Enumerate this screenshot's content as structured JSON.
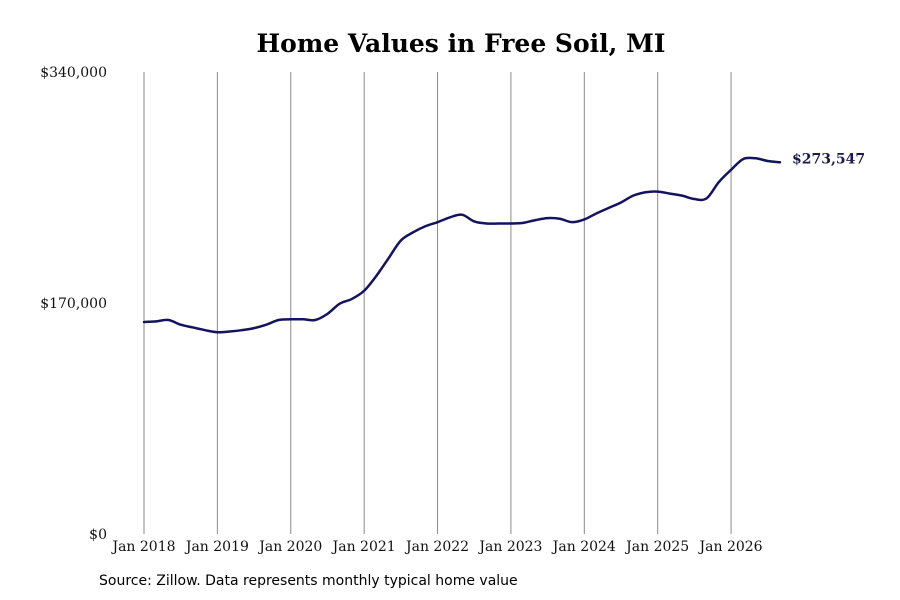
{
  "chart_data": {
    "type": "line",
    "title": "Home Values in Free Soil, MI",
    "xlabel": "",
    "ylabel": "",
    "ylim": [
      0,
      340000
    ],
    "xlim": [
      "2018-01",
      "2026-09"
    ],
    "grid": "vertical",
    "y_ticks": [
      {
        "value": 0,
        "label": "$0"
      },
      {
        "value": 170000,
        "label": "$170,000"
      },
      {
        "value": 340000,
        "label": "$340,000"
      }
    ],
    "x_ticks": [
      {
        "value": "2018-01",
        "label": "Jan 2018"
      },
      {
        "value": "2019-01",
        "label": "Jan 2019"
      },
      {
        "value": "2020-01",
        "label": "Jan 2020"
      },
      {
        "value": "2021-01",
        "label": "Jan 2021"
      },
      {
        "value": "2022-01",
        "label": "Jan 2022"
      },
      {
        "value": "2023-01",
        "label": "Jan 2023"
      },
      {
        "value": "2024-01",
        "label": "Jan 2024"
      },
      {
        "value": "2025-01",
        "label": "Jan 2025"
      },
      {
        "value": "2026-01",
        "label": "Jan 2026"
      }
    ],
    "series": [
      {
        "color": "#13135e",
        "x": [
          "2018-01",
          "2018-03",
          "2018-05",
          "2018-07",
          "2018-09",
          "2018-11",
          "2019-01",
          "2019-03",
          "2019-05",
          "2019-07",
          "2019-09",
          "2019-11",
          "2020-01",
          "2020-03",
          "2020-05",
          "2020-07",
          "2020-09",
          "2020-11",
          "2021-01",
          "2021-03",
          "2021-05",
          "2021-07",
          "2021-09",
          "2021-11",
          "2022-01",
          "2022-03",
          "2022-05",
          "2022-07",
          "2022-09",
          "2022-11",
          "2023-01",
          "2023-03",
          "2023-05",
          "2023-07",
          "2023-09",
          "2023-11",
          "2024-01",
          "2024-03",
          "2024-05",
          "2024-07",
          "2024-09",
          "2024-11",
          "2025-01",
          "2025-03",
          "2025-05",
          "2025-07",
          "2025-09",
          "2025-11",
          "2026-01",
          "2026-03",
          "2026-05",
          "2026-07",
          "2026-09"
        ],
        "values": [
          156000,
          156500,
          157500,
          154000,
          152000,
          150000,
          148500,
          149000,
          150000,
          151500,
          154000,
          157500,
          158000,
          158000,
          157500,
          162000,
          169500,
          173000,
          179000,
          190000,
          203000,
          216000,
          222000,
          226500,
          229500,
          233000,
          235000,
          230000,
          228500,
          228500,
          228500,
          229000,
          231000,
          232500,
          232000,
          229500,
          231500,
          236000,
          240000,
          244000,
          249000,
          251500,
          252000,
          250500,
          249000,
          246500,
          247000,
          259000,
          268000,
          276000,
          276500,
          274500,
          273547
        ]
      }
    ],
    "annotations": [
      {
        "text": "$273,547",
        "series": 0,
        "point": "last"
      }
    ]
  },
  "footer": {
    "source": "Source: Zillow. Data represents monthly typical home value"
  }
}
